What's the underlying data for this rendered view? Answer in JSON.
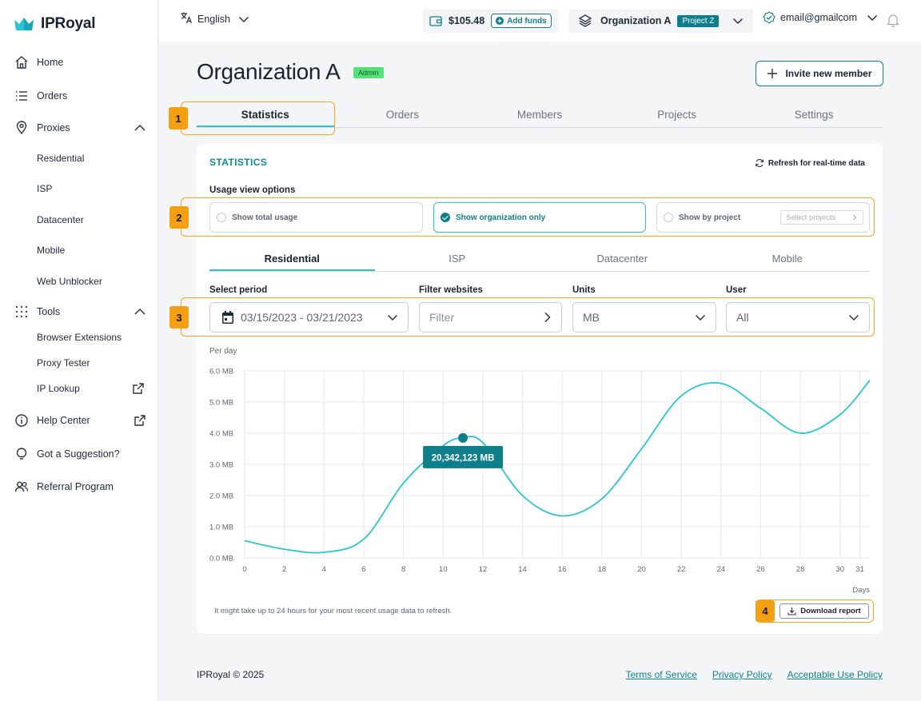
{
  "brand": {
    "name": "IPRoyal",
    "accent": "#0e7f8a",
    "highlight": "#2ac4d2",
    "annotation": "#f5a012"
  },
  "sidebar": {
    "home": "Home",
    "orders": "Orders",
    "proxies": "Proxies",
    "proxy_items": [
      "Residential",
      "ISP",
      "Datacenter",
      "Mobile",
      "Web Unblocker"
    ],
    "tools": "Tools",
    "tool_items": [
      "Browser Extensions",
      "Proxy Tester",
      "IP Lookup"
    ],
    "help": "Help Center",
    "suggestion": "Got a Suggestion?",
    "referral": "Referral Program"
  },
  "topbar": {
    "language": "English",
    "balance": "$105.48",
    "add_funds": "Add funds",
    "organization": "Organization A",
    "project": "Project Z",
    "email": "email@gmailcom"
  },
  "header": {
    "title": "Organization A",
    "role_badge": "Admin",
    "invite_label": "Invite new member"
  },
  "tabs": [
    "Statistics",
    "Orders",
    "Members",
    "Projects",
    "Settings"
  ],
  "statistics": {
    "title": "STATISTICS",
    "refresh_label": "Refresh for real-time data",
    "usage_label": "Usage view options",
    "options": [
      "Show total usage",
      "Show organization only",
      "Show by project"
    ],
    "select_projects_placeholder": "Select projects",
    "product_tabs": [
      "Residential",
      "ISP",
      "Datacenter",
      "Mobile"
    ],
    "filters": {
      "period_label": "Select period",
      "period_value": "03/15/2023 - 03/21/2023",
      "websites_label": "Filter websites",
      "websites_placeholder": "Filter",
      "units_label": "Units",
      "units_value": "MB",
      "user_label": "User",
      "user_value": "All"
    },
    "note": "It might take up to 24 hours for your most recent usage data to refresh.",
    "download_label": "Download report"
  },
  "annotations": [
    "1",
    "2",
    "3",
    "4"
  ],
  "chart_data": {
    "type": "line",
    "ylabel": "Per day",
    "xlabel": "Days",
    "x": [
      0,
      2,
      4,
      6,
      8,
      10,
      11,
      12,
      14,
      16,
      18,
      20,
      22,
      24,
      26,
      28,
      30,
      31.5
    ],
    "y": [
      0.55,
      0.28,
      0.18,
      0.6,
      2.4,
      3.6,
      3.85,
      3.7,
      2.0,
      1.35,
      1.9,
      3.5,
      5.2,
      5.6,
      4.8,
      4.0,
      4.6,
      5.7
    ],
    "ylim": [
      0,
      6
    ],
    "y_ticks": [
      "0.0 MB",
      "1.0 MB",
      "2.0 MB",
      "3.0 MB",
      "4.0 MB",
      "5.0 MB",
      "6.0 MB"
    ],
    "x_ticks": [
      "0",
      "2",
      "4",
      "6",
      "8",
      "10",
      "12",
      "14",
      "16",
      "18",
      "20",
      "22",
      "24",
      "26",
      "28",
      "30",
      "31"
    ],
    "tooltip": {
      "x": 11,
      "label": "20,342,123 MB"
    },
    "line_color": "#2ac4d2",
    "grid": true
  },
  "footer": {
    "copyright": "IPRoyal © 2025",
    "links": [
      "Terms of Service",
      "Privacy Policy",
      "Acceptable Use Policy"
    ]
  }
}
